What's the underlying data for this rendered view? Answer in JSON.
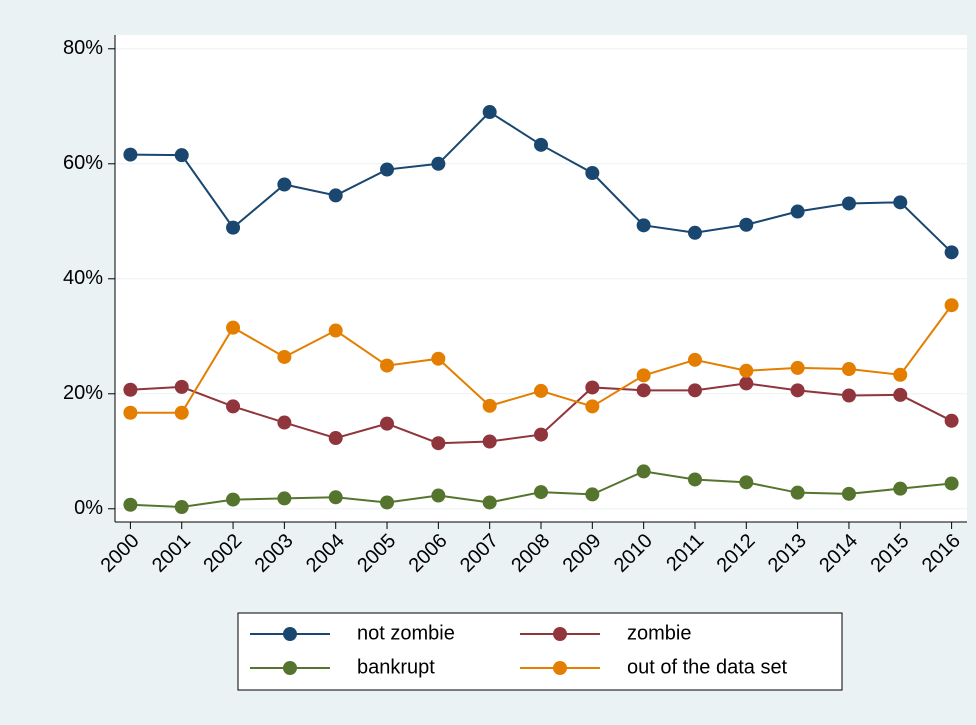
{
  "chart_data": {
    "type": "line",
    "x": [
      2000,
      2001,
      2002,
      2003,
      2004,
      2005,
      2006,
      2007,
      2008,
      2009,
      2010,
      2011,
      2012,
      2013,
      2014,
      2015,
      2016
    ],
    "series": [
      {
        "name": "not zombie",
        "color": "#1a476f",
        "values": [
          61.6,
          61.5,
          48.9,
          56.4,
          54.5,
          59.0,
          60.0,
          69.0,
          63.3,
          58.4,
          49.3,
          48.0,
          49.4,
          51.7,
          53.1,
          53.3,
          44.6
        ]
      },
      {
        "name": "zombie",
        "color": "#90353b",
        "values": [
          20.7,
          21.2,
          17.8,
          15.0,
          12.3,
          14.8,
          11.4,
          11.7,
          12.9,
          21.1,
          20.6,
          20.6,
          21.8,
          20.6,
          19.7,
          19.8,
          15.3
        ]
      },
      {
        "name": "bankrupt",
        "color": "#55752f",
        "values": [
          0.7,
          0.3,
          1.6,
          1.8,
          2.0,
          1.1,
          2.3,
          1.1,
          2.9,
          2.5,
          6.5,
          5.1,
          4.6,
          2.8,
          2.6,
          3.5,
          4.4
        ]
      },
      {
        "name": "out of the data set",
        "color": "#e37e00",
        "values": [
          16.7,
          16.7,
          31.5,
          26.4,
          31.0,
          24.9,
          26.1,
          17.9,
          20.5,
          17.8,
          23.2,
          25.9,
          24.0,
          24.5,
          24.3,
          23.3,
          35.4
        ]
      }
    ],
    "xlim": [
      1999.7,
      2016.3
    ],
    "xticks": [
      2000,
      2001,
      2002,
      2003,
      2004,
      2005,
      2006,
      2007,
      2008,
      2009,
      2010,
      2011,
      2012,
      2013,
      2014,
      2015,
      2016
    ],
    "ylim": [
      -2.3,
      82.4
    ],
    "yticks": [
      {
        "value": 0,
        "label": "0%"
      },
      {
        "value": 20,
        "label": "20%"
      },
      {
        "value": 40,
        "label": "40%"
      },
      {
        "value": 60,
        "label": "60%"
      },
      {
        "value": 80,
        "label": "80%"
      }
    ],
    "grid": true,
    "legend": "bottom"
  }
}
